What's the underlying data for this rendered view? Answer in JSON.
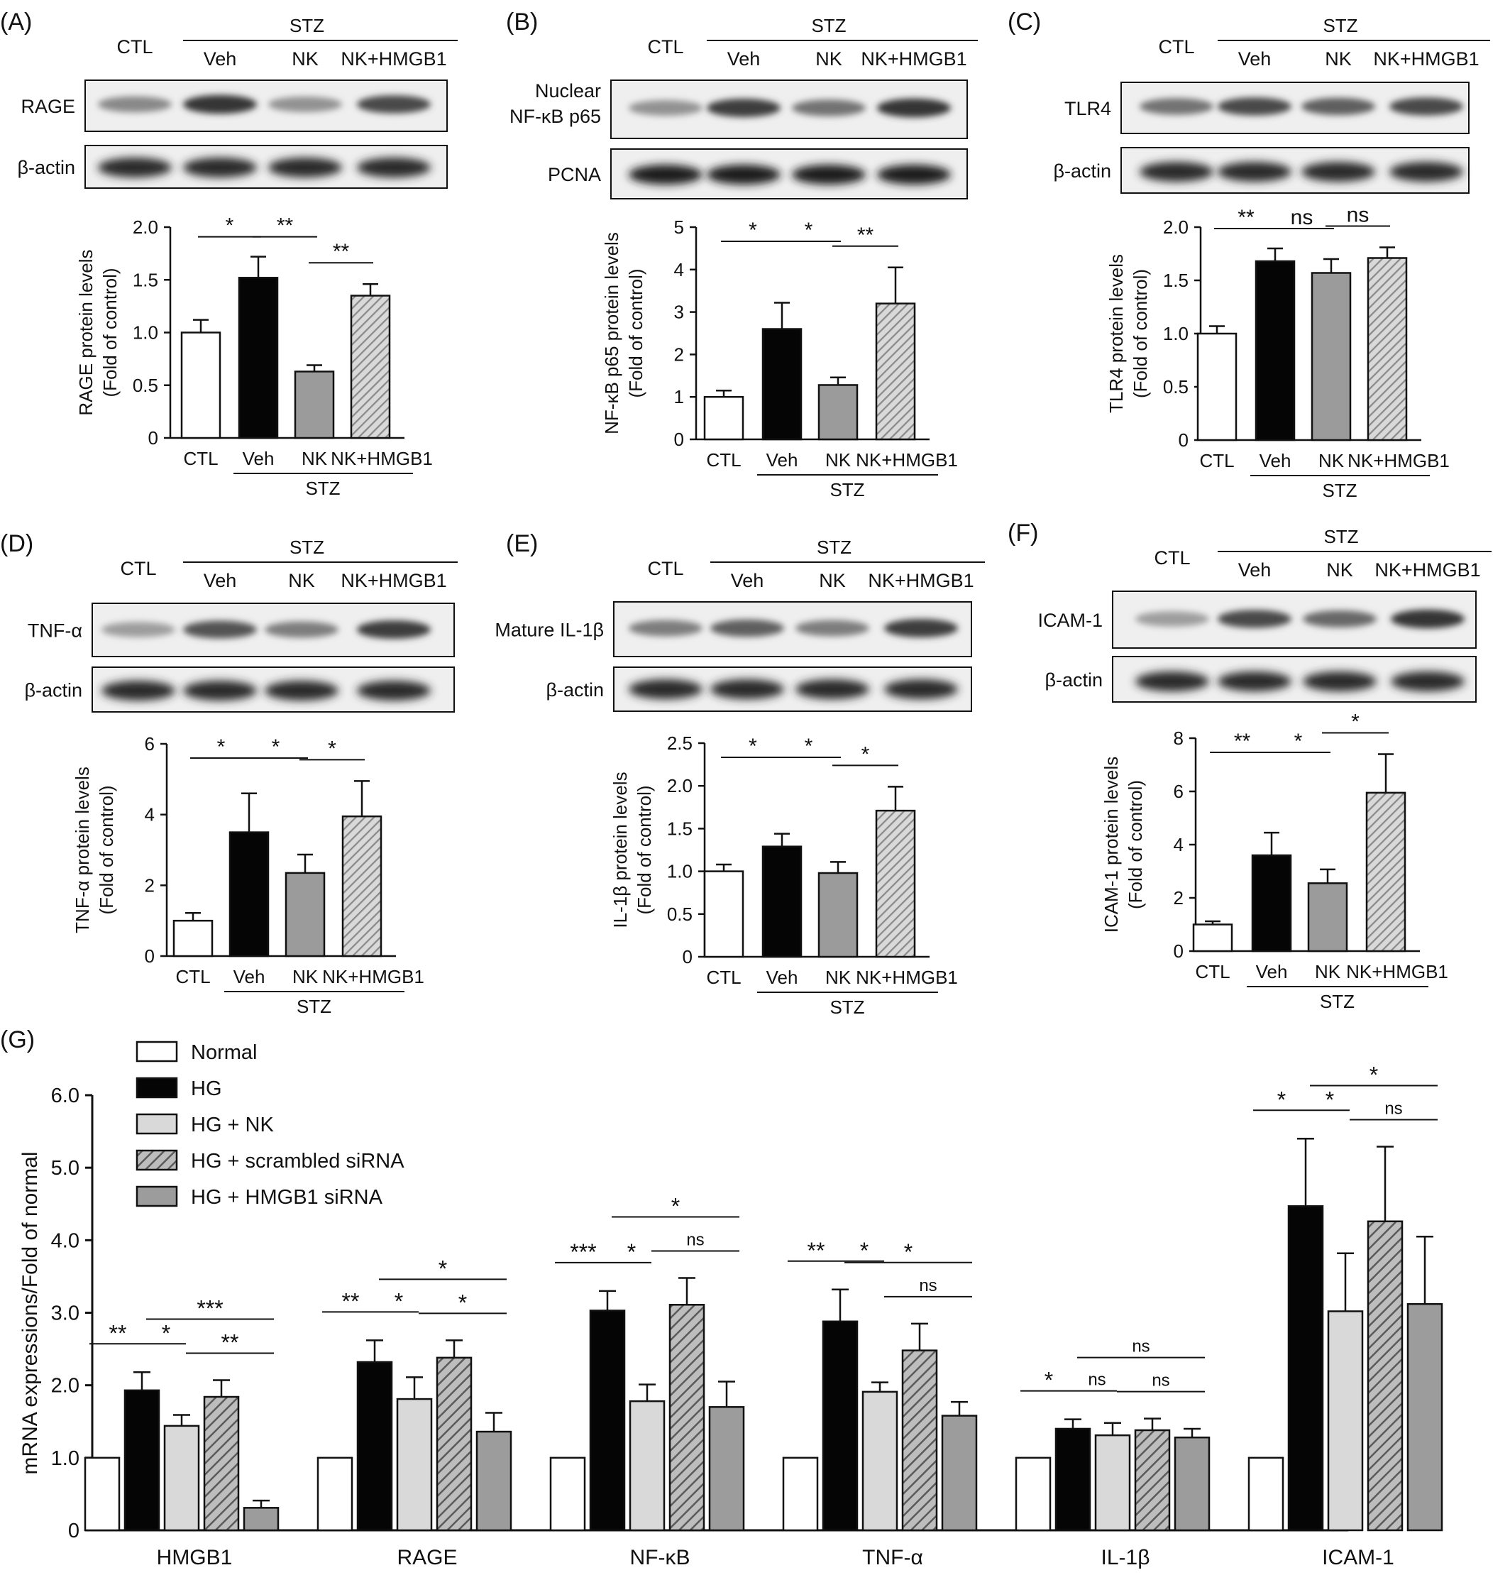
{
  "colors": {
    "ctl": "#ffffff",
    "veh": "#050505",
    "nk": "#9b9b9b",
    "hmgb1_hatch": "#b8b8b8",
    "hg_nk": "#d8d8d8",
    "hmgb1_sirna": "#9c9c9c",
    "axis": "#111111"
  },
  "panels": [
    {
      "letter": "(A)",
      "stz_label": "STZ",
      "ctl_label": "CTL",
      "lane_labels": [
        "Veh",
        "NK",
        "NK+HMGB1"
      ],
      "band_labels": [
        "RAGE",
        "β-actin"
      ],
      "chart": {
        "ylabel_line1": "RAGE protein levels",
        "ylabel_line2": "(Fold of control)",
        "ticks": [
          "0",
          "0.5",
          "1.0",
          "1.5",
          "2.0"
        ],
        "categories": [
          "CTL",
          "Veh",
          "NK",
          "NK+HMGB1"
        ],
        "group_label": "STZ",
        "sig": [
          {
            "label": "*"
          },
          {
            "label": "**"
          },
          {
            "label": "**"
          }
        ]
      }
    },
    {
      "letter": "(B)",
      "stz_label": "STZ",
      "ctl_label": "CTL",
      "lane_labels": [
        "Veh",
        "NK",
        "NK+HMGB1"
      ],
      "band_labels": [
        "Nuclear",
        "NF-κB p65",
        "PCNA"
      ],
      "chart": {
        "ylabel_line1": "NF-κB p65 protein levels",
        "ylabel_line2": "(Fold of control)",
        "ticks": [
          "0",
          "1",
          "2",
          "3",
          "4",
          "5"
        ],
        "categories": [
          "CTL",
          "Veh",
          "NK",
          "NK+HMGB1"
        ],
        "group_label": "STZ",
        "sig": [
          {
            "label": "*"
          },
          {
            "label": "*"
          },
          {
            "label": "**"
          }
        ]
      }
    },
    {
      "letter": "(C)",
      "stz_label": "STZ",
      "ctl_label": "CTL",
      "lane_labels": [
        "Veh",
        "NK",
        "NK+HMGB1"
      ],
      "band_labels": [
        "TLR4",
        "β-actin"
      ],
      "chart": {
        "ylabel_line1": "TLR4 protein levels",
        "ylabel_line2": "(Fold of control)",
        "ticks": [
          "0",
          "0.5",
          "1.0",
          "1.5",
          "2.0"
        ],
        "categories": [
          "CTL",
          "Veh",
          "NK",
          "NK+HMGB1"
        ],
        "group_label": "STZ",
        "sig": [
          {
            "label": "**"
          },
          {
            "label": "ns"
          },
          {
            "label": "ns"
          }
        ]
      }
    },
    {
      "letter": "(D)",
      "stz_label": "STZ",
      "ctl_label": "CTL",
      "lane_labels": [
        "Veh",
        "NK",
        "NK+HMGB1"
      ],
      "band_labels": [
        "TNF-α",
        "β-actin"
      ],
      "chart": {
        "ylabel_line1": "TNF-α protein levels",
        "ylabel_line2": "(Fold of control)",
        "ticks": [
          "0",
          "2",
          "4",
          "6"
        ],
        "categories": [
          "CTL",
          "Veh",
          "NK",
          "NK+HMGB1"
        ],
        "group_label": "STZ",
        "sig": [
          {
            "label": "*"
          },
          {
            "label": "*"
          },
          {
            "label": "*"
          }
        ]
      }
    },
    {
      "letter": "(E)",
      "stz_label": "STZ",
      "ctl_label": "CTL",
      "lane_labels": [
        "Veh",
        "NK",
        "NK+HMGB1"
      ],
      "band_labels": [
        "Mature IL-1β",
        "β-actin"
      ],
      "chart": {
        "ylabel_line1": "IL-1β protein levels",
        "ylabel_line2": "(Fold of control)",
        "ticks": [
          "0",
          "0.5",
          "1.0",
          "1.5",
          "2.0",
          "2.5"
        ],
        "categories": [
          "CTL",
          "Veh",
          "NK",
          "NK+HMGB1"
        ],
        "group_label": "STZ",
        "sig": [
          {
            "label": "*"
          },
          {
            "label": "*"
          },
          {
            "label": "*"
          }
        ]
      }
    },
    {
      "letter": "(F)",
      "stz_label": "STZ",
      "ctl_label": "CTL",
      "lane_labels": [
        "Veh",
        "NK",
        "NK+HMGB1"
      ],
      "band_labels": [
        "ICAM-1",
        "β-actin"
      ],
      "chart": {
        "ylabel_line1": "ICAM-1 protein levels",
        "ylabel_line2": "(Fold of control)",
        "ticks": [
          "0",
          "2",
          "4",
          "6",
          "8"
        ],
        "categories": [
          "CTL",
          "Veh",
          "NK",
          "NK+HMGB1"
        ],
        "group_label": "STZ",
        "sig": [
          {
            "label": "**"
          },
          {
            "label": "*"
          },
          {
            "label": "*"
          }
        ]
      }
    }
  ],
  "panel_g": {
    "letter": "(G)",
    "ylabel": "mRNA expressions/Fold of normal",
    "ticks": [
      "0",
      "1.0",
      "2.0",
      "3.0",
      "4.0",
      "5.0",
      "6.0"
    ],
    "legend": [
      "Normal",
      "HG",
      "HG + NK",
      "HG + scrambled siRNA",
      "HG + HMGB1 siRNA"
    ],
    "groups": [
      "HMGB1",
      "RAGE",
      "NF-κB",
      "TNF-α",
      "IL-1β",
      "ICAM-1"
    ],
    "sig": [
      [
        "**",
        "*",
        "***",
        "**"
      ],
      [
        "**",
        "*",
        "*",
        "*"
      ],
      [
        "***",
        "*",
        "*",
        "ns"
      ],
      [
        "**",
        "*",
        "*",
        "ns"
      ],
      [
        "*",
        "ns",
        "ns",
        "ns"
      ],
      [
        "*",
        "*",
        "*",
        "ns"
      ]
    ]
  },
  "chart_data": [
    {
      "panel": "A",
      "type": "bar",
      "categories": [
        "CTL",
        "Veh",
        "NK",
        "NK+HMGB1"
      ],
      "values": [
        1.0,
        1.52,
        0.63,
        1.35
      ],
      "errors": [
        0.12,
        0.2,
        0.06,
        0.11
      ],
      "ylim": [
        0,
        2.0
      ],
      "ylabel": "RAGE protein levels (Fold of control)"
    },
    {
      "panel": "B",
      "type": "bar",
      "categories": [
        "CTL",
        "Veh",
        "NK",
        "NK+HMGB1"
      ],
      "values": [
        1.0,
        2.6,
        1.28,
        3.2
      ],
      "errors": [
        0.15,
        0.62,
        0.18,
        0.85
      ],
      "ylim": [
        0,
        5
      ],
      "ylabel": "NF-κB p65 protein levels (Fold of control)"
    },
    {
      "panel": "C",
      "type": "bar",
      "categories": [
        "CTL",
        "Veh",
        "NK",
        "NK+HMGB1"
      ],
      "values": [
        1.0,
        1.68,
        1.57,
        1.71
      ],
      "errors": [
        0.07,
        0.12,
        0.13,
        0.1
      ],
      "ylim": [
        0,
        2.0
      ],
      "ylabel": "TLR4 protein levels (Fold of control)"
    },
    {
      "panel": "D",
      "type": "bar",
      "categories": [
        "CTL",
        "Veh",
        "NK",
        "NK+HMGB1"
      ],
      "values": [
        1.0,
        3.5,
        2.35,
        3.95
      ],
      "errors": [
        0.22,
        1.1,
        0.52,
        1.0
      ],
      "ylim": [
        0,
        6
      ],
      "ylabel": "TNF-α protein levels (Fold of control)"
    },
    {
      "panel": "E",
      "type": "bar",
      "categories": [
        "CTL",
        "Veh",
        "NK",
        "NK+HMGB1"
      ],
      "values": [
        1.0,
        1.29,
        0.98,
        1.71
      ],
      "errors": [
        0.08,
        0.15,
        0.13,
        0.28
      ],
      "ylim": [
        0,
        2.5
      ],
      "ylabel": "IL-1β protein levels (Fold of control)"
    },
    {
      "panel": "F",
      "type": "bar",
      "categories": [
        "CTL",
        "Veh",
        "NK",
        "NK+HMGB1"
      ],
      "values": [
        1.0,
        3.6,
        2.55,
        5.95
      ],
      "errors": [
        0.12,
        0.85,
        0.52,
        1.45
      ],
      "ylim": [
        0,
        8
      ],
      "ylabel": "ICAM-1 protein levels (Fold of control)"
    },
    {
      "panel": "G",
      "type": "bar",
      "categories": [
        "HMGB1",
        "RAGE",
        "NF-κB",
        "TNF-α",
        "IL-1β",
        "ICAM-1"
      ],
      "ylim": [
        0,
        6.0
      ],
      "ylabel": "mRNA expressions/Fold of normal",
      "series": [
        {
          "name": "Normal",
          "values": [
            1.0,
            1.0,
            1.0,
            1.0,
            1.0,
            1.0
          ],
          "errors": [
            0,
            0,
            0,
            0,
            0,
            0
          ]
        },
        {
          "name": "HG",
          "values": [
            1.93,
            2.32,
            3.03,
            2.88,
            1.4,
            4.47
          ],
          "errors": [
            0.25,
            0.3,
            0.27,
            0.44,
            0.13,
            0.93
          ]
        },
        {
          "name": "HG + NK",
          "values": [
            1.44,
            1.81,
            1.78,
            1.91,
            1.31,
            3.02
          ],
          "errors": [
            0.15,
            0.3,
            0.23,
            0.13,
            0.17,
            0.8
          ]
        },
        {
          "name": "HG + scrambled siRNA",
          "values": [
            1.84,
            2.38,
            3.11,
            2.48,
            1.38,
            4.26
          ],
          "errors": [
            0.23,
            0.24,
            0.37,
            0.37,
            0.16,
            1.03
          ]
        },
        {
          "name": "HG + HMGB1 siRNA",
          "values": [
            0.31,
            1.36,
            1.7,
            1.58,
            1.28,
            3.12
          ],
          "errors": [
            0.1,
            0.26,
            0.35,
            0.19,
            0.12,
            0.93
          ]
        }
      ]
    }
  ]
}
